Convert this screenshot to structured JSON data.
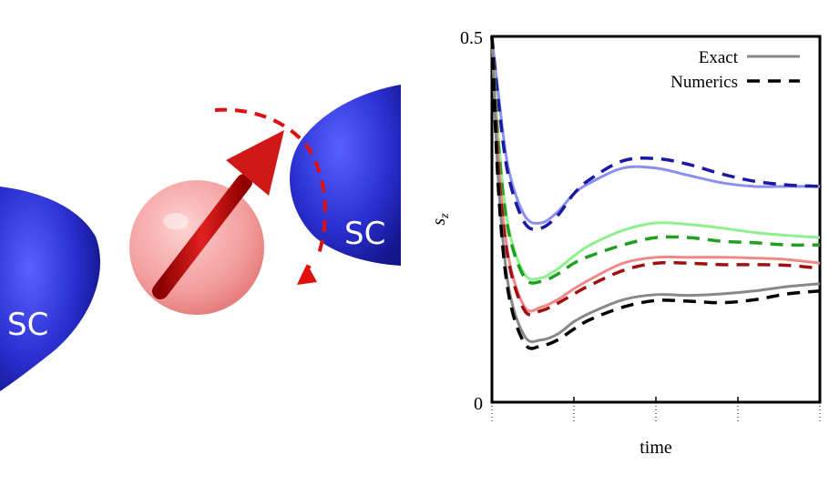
{
  "illustration": {
    "left_lead_label": "SC",
    "right_lead_label": "SC",
    "colors": {
      "lead": "#2a2fd0",
      "spin_sphere": "#f08080",
      "spin_arrow": "#d01818",
      "precession": "#e01010"
    }
  },
  "chart_data": {
    "type": "line",
    "title": "",
    "xlabel": "time",
    "ylabel": "sz",
    "ylim": [
      0,
      0.5
    ],
    "yticks": [
      "0",
      "0.5"
    ],
    "xticks_count": 4,
    "x": [
      0,
      0.02,
      0.05,
      0.1,
      0.15,
      0.2,
      0.25,
      0.3,
      0.4,
      0.5,
      0.6,
      0.7,
      0.8,
      0.9,
      1.0
    ],
    "legend": [
      {
        "label": "Exact",
        "style": "solid"
      },
      {
        "label": "Numerics",
        "style": "dashed"
      }
    ],
    "series": [
      {
        "color_exact": "#8a8ff0",
        "color_numerics": "#1a1aa0",
        "exact": [
          0.5,
          0.42,
          0.32,
          0.255,
          0.245,
          0.26,
          0.285,
          0.3,
          0.32,
          0.32,
          0.31,
          0.3,
          0.295,
          0.295,
          0.295
        ],
        "numerics": [
          0.5,
          0.41,
          0.31,
          0.245,
          0.238,
          0.255,
          0.285,
          0.305,
          0.33,
          0.333,
          0.325,
          0.312,
          0.302,
          0.297,
          0.295
        ]
      },
      {
        "color_exact": "#8ef08e",
        "color_numerics": "#20a020",
        "exact": [
          0.5,
          0.36,
          0.24,
          0.175,
          0.17,
          0.182,
          0.2,
          0.215,
          0.235,
          0.245,
          0.243,
          0.238,
          0.232,
          0.228,
          0.225
        ],
        "numerics": [
          0.5,
          0.35,
          0.235,
          0.17,
          0.165,
          0.175,
          0.19,
          0.2,
          0.215,
          0.225,
          0.225,
          0.22,
          0.218,
          0.215,
          0.215
        ]
      },
      {
        "color_exact": "#f08888",
        "color_numerics": "#a01010",
        "exact": [
          0.5,
          0.33,
          0.2,
          0.13,
          0.13,
          0.14,
          0.155,
          0.168,
          0.19,
          0.198,
          0.198,
          0.198,
          0.197,
          0.195,
          0.19
        ],
        "numerics": [
          0.5,
          0.32,
          0.195,
          0.125,
          0.125,
          0.135,
          0.148,
          0.16,
          0.18,
          0.19,
          0.19,
          0.188,
          0.188,
          0.187,
          0.183
        ]
      },
      {
        "color_exact": "#888888",
        "color_numerics": "#000000",
        "exact": [
          0.5,
          0.3,
          0.16,
          0.09,
          0.085,
          0.093,
          0.11,
          0.122,
          0.14,
          0.147,
          0.146,
          0.148,
          0.152,
          0.158,
          0.162
        ],
        "numerics": [
          0.5,
          0.29,
          0.15,
          0.08,
          0.077,
          0.085,
          0.1,
          0.113,
          0.13,
          0.139,
          0.138,
          0.136,
          0.14,
          0.148,
          0.152
        ]
      }
    ]
  }
}
